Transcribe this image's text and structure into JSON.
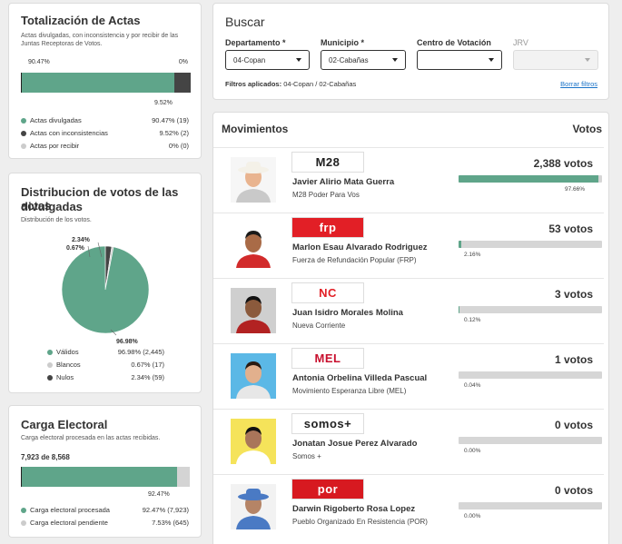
{
  "actas": {
    "title": "Totalización de Actas",
    "subtitle_line1": "Actas divulgadas, con inconsistencia y por recibir de las",
    "subtitle_line2": "Juntas Receptoras de Votos.",
    "top_left_label": "90.47%",
    "top_right_label": "0%",
    "bottom_label": "9.52%",
    "bar_fractions": {
      "divulgadas": 0.9047,
      "inconsistencias": 0.0952,
      "por_recibir": 0.0
    },
    "legend": [
      {
        "label": "Actas divulgadas",
        "value": "90.47% (19)",
        "color": "#5fa58a"
      },
      {
        "label": "Actas con inconsistencias",
        "value": "9.52% (2)",
        "color": "#444444"
      },
      {
        "label": "Actas por recibir",
        "value": "0% (0)",
        "color": "#cccccc"
      }
    ]
  },
  "distribucion": {
    "title_line1": "Distribucion de votos de las actas",
    "title_line2": "divulgadas",
    "subtitle": "Distribución de los votos.",
    "pie_label_nulos": "2.34%",
    "pie_label_blancos": "0.67%",
    "pie_label_validos": "96.98%",
    "pie_fractions": {
      "validos": 0.9698,
      "blancos": 0.0067,
      "nulos": 0.0234
    },
    "legend": [
      {
        "label": "Válidos",
        "value": "96.98% (2,445)",
        "color": "#5fa58a"
      },
      {
        "label": "Blancos",
        "value": "0.67% (17)",
        "color": "#cccccc"
      },
      {
        "label": "Nulos",
        "value": "2.34% (59)",
        "color": "#444444"
      }
    ]
  },
  "carga": {
    "title": "Carga Electoral",
    "subtitle": "Carga electoral procesada en las actas recibidas.",
    "total": "7,923 de 8,568",
    "bar_fraction": 0.9247,
    "bar_label": "92.47%",
    "legend": [
      {
        "label": "Carga electoral procesada",
        "value": "92.47% (7,923)",
        "color": "#5fa58a"
      },
      {
        "label": "Carga electoral pendiente",
        "value": "7.53% (645)",
        "color": "#cccccc"
      }
    ]
  },
  "buscar": {
    "title": "Buscar",
    "departamento_label": "Departamento *",
    "departamento_value": "04-Copan",
    "municipio_label": "Municipio *",
    "municipio_value": "02-Cabañas",
    "centro_label": "Centro de Votación",
    "centro_value": "",
    "jrv_label": "JRV",
    "jrv_value": "",
    "filtros_label": "Filtros aplicados:",
    "filtros_value": "04-Copan / 02-Cabañas",
    "borrar": "Borrar filtros"
  },
  "movimientos": {
    "header_left": "Movimientos",
    "header_right": "Votos",
    "candidates": [
      {
        "name": "Javier Alirio Mata Guerra",
        "party": "M28 Poder Para Vos",
        "logo": "M28",
        "logo_bg": "#ffffff",
        "logo_fg": "#222222",
        "votes": "2,388 votos",
        "pct": "97.66%",
        "fraction": 0.9766
      },
      {
        "name": "Marlon Esau Alvarado Rodriguez",
        "party": "Fuerza de Refundación Popular (FRP)",
        "logo": "frp",
        "logo_bg": "#e21f26",
        "logo_fg": "#ffffff",
        "votes": "53 votos",
        "pct": "2.16%",
        "fraction": 0.0216
      },
      {
        "name": "Juan Isidro Morales Molina",
        "party": "Nueva Corriente",
        "logo": "NC",
        "logo_bg": "#ffffff",
        "logo_fg": "#e21f26",
        "votes": "3 votos",
        "pct": "0.12%",
        "fraction": 0.0012
      },
      {
        "name": "Antonia Orbelina Villeda Pascual",
        "party": "Movimiento Esperanza Libre (MEL)",
        "logo": "MEL",
        "logo_bg": "#ffffff",
        "logo_fg": "#c8102e",
        "votes": "1 votos",
        "pct": "0.04%",
        "fraction": 0.0004
      },
      {
        "name": "Jonatan Josue Perez Alvarado",
        "party": "Somos +",
        "logo": "somos+",
        "logo_bg": "#ffffff",
        "logo_fg": "#222222",
        "votes": "0 votos",
        "pct": "0.00%",
        "fraction": 0.0
      },
      {
        "name": "Darwin Rigoberto Rosa Lopez",
        "party": "Pueblo Organizado En Resistencia (POR)",
        "logo": "por",
        "logo_bg": "#d71920",
        "logo_fg": "#ffffff",
        "votes": "0 votos",
        "pct": "0.00%",
        "fraction": 0.0
      }
    ]
  },
  "colors": {
    "green": "#5fa58a",
    "dark": "#444444",
    "gray": "#cccccc",
    "link": "#1a73c8"
  }
}
